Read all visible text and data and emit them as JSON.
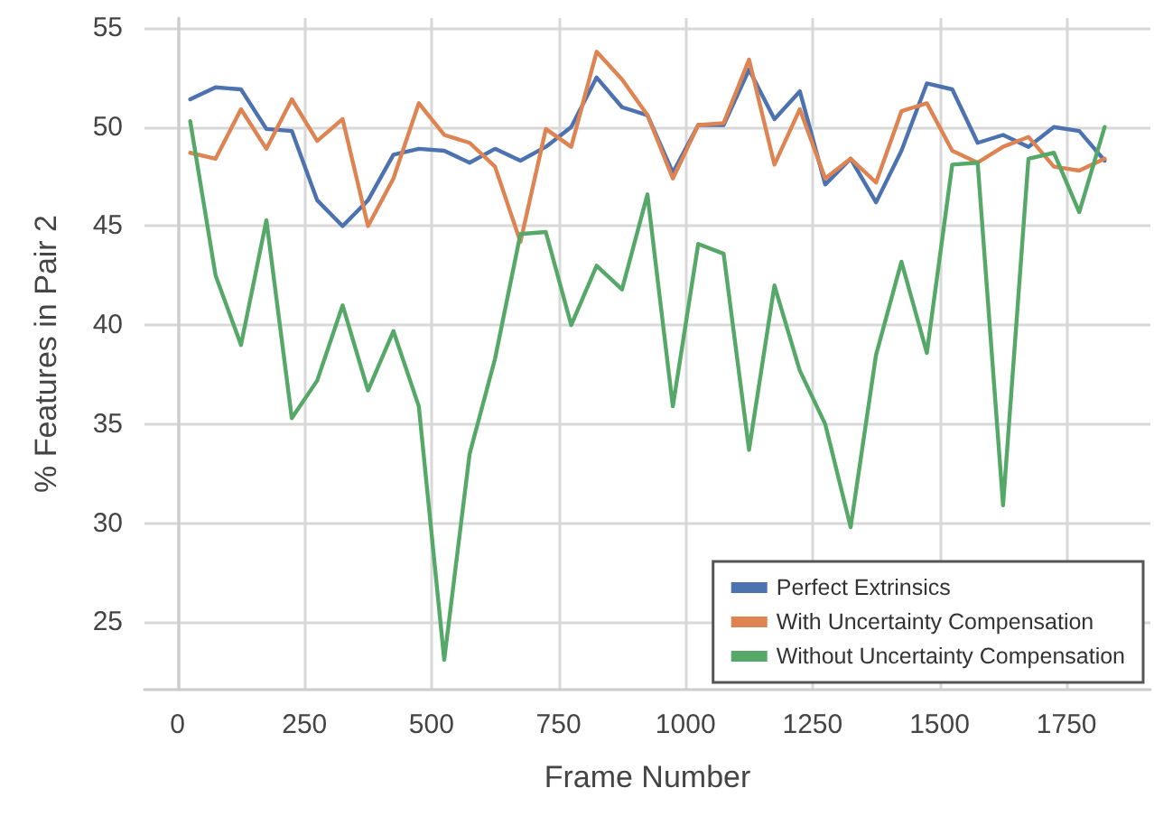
{
  "chart_data": {
    "type": "line",
    "xlabel": "Frame Number",
    "ylabel": "% Features in Pair 2",
    "x": [
      25,
      75,
      125,
      175,
      225,
      275,
      325,
      375,
      425,
      475,
      525,
      575,
      625,
      675,
      725,
      775,
      825,
      875,
      925,
      975,
      1025,
      1075,
      1125,
      1175,
      1225,
      1275,
      1325,
      1375,
      1425,
      1475,
      1525,
      1575,
      1625,
      1675,
      1725,
      1775,
      1825
    ],
    "series": [
      {
        "name": "Perfect Extrinsics",
        "color": "#4c72b0",
        "values": [
          51.4,
          52.0,
          51.9,
          49.9,
          49.8,
          46.3,
          45.0,
          46.3,
          48.6,
          48.9,
          48.8,
          48.2,
          48.9,
          48.3,
          49.0,
          50.0,
          52.5,
          51.0,
          50.6,
          47.7,
          50.1,
          50.1,
          52.9,
          50.4,
          51.8,
          47.1,
          48.4,
          46.2,
          48.8,
          52.2,
          51.9,
          49.2,
          49.6,
          49.0,
          50.0,
          49.8,
          48.3
        ]
      },
      {
        "name": "With Uncertainty Compensation",
        "color": "#dd8452",
        "values": [
          48.7,
          48.4,
          50.9,
          48.9,
          51.4,
          49.3,
          50.4,
          45.0,
          47.4,
          51.2,
          49.6,
          49.2,
          48.0,
          44.2,
          49.9,
          49.0,
          53.8,
          52.4,
          50.6,
          47.4,
          50.1,
          50.2,
          53.4,
          48.1,
          50.9,
          47.4,
          48.4,
          47.2,
          50.8,
          51.2,
          48.8,
          48.2,
          49.0,
          49.5,
          48.0,
          47.8,
          48.4
        ]
      },
      {
        "name": "Without Uncertainty Compensation",
        "color": "#55a868",
        "values": [
          50.3,
          42.5,
          39.0,
          45.3,
          35.3,
          37.2,
          41.0,
          36.7,
          39.7,
          35.9,
          23.1,
          33.5,
          38.3,
          44.6,
          44.7,
          40.0,
          43.0,
          41.8,
          46.6,
          35.9,
          44.1,
          43.6,
          33.7,
          42.0,
          37.7,
          35.0,
          29.8,
          38.5,
          43.2,
          38.6,
          48.1,
          48.2,
          30.9,
          48.4,
          48.7,
          45.7,
          50.0
        ]
      }
    ],
    "xlim": [
      -65,
      1915
    ],
    "xticks": [
      0,
      250,
      500,
      750,
      1000,
      1250,
      1500,
      1750
    ],
    "ylim": [
      21.6,
      55.5
    ],
    "yticks": [
      25,
      30,
      35,
      40,
      45,
      50,
      55
    ],
    "grid": true,
    "legend": "bottom right",
    "marker": "none",
    "line_style": "solid"
  }
}
